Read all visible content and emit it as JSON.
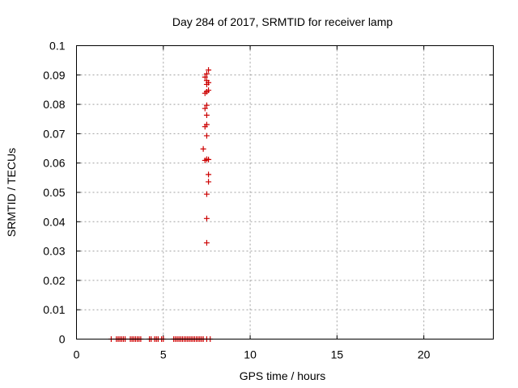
{
  "chart_data": {
    "type": "scatter",
    "title": "Day 284 of 2017, SRMTID for receiver lamp",
    "xlabel": "GPS time / hours",
    "ylabel": "SRMTID / TECUs",
    "xlim": [
      0,
      24
    ],
    "ylim": [
      0,
      0.1
    ],
    "xticks": [
      0,
      5,
      10,
      15,
      20
    ],
    "xtick_labels": [
      "0",
      "5",
      "10",
      "15",
      "20"
    ],
    "yticks": [
      0,
      0.01,
      0.02,
      0.03,
      0.04,
      0.05,
      0.06,
      0.07,
      0.08,
      0.09,
      0.1
    ],
    "ytick_labels": [
      "0",
      "0.01",
      "0.02",
      "0.03",
      "0.04",
      "0.05",
      "0.06",
      "0.07",
      "0.08",
      "0.09",
      "0.1"
    ],
    "grid": true,
    "legend": "none",
    "series": [
      {
        "name": "SRMTID",
        "color": "#cc0000",
        "marker": "plus",
        "points": [
          [
            2.0,
            0
          ],
          [
            2.3,
            0
          ],
          [
            2.4,
            0
          ],
          [
            2.5,
            0
          ],
          [
            2.6,
            0
          ],
          [
            2.7,
            0
          ],
          [
            2.8,
            0
          ],
          [
            3.1,
            0
          ],
          [
            3.2,
            0
          ],
          [
            3.3,
            0
          ],
          [
            3.4,
            0
          ],
          [
            3.5,
            0
          ],
          [
            3.6,
            0
          ],
          [
            3.7,
            0
          ],
          [
            4.2,
            0
          ],
          [
            4.3,
            0
          ],
          [
            4.5,
            0
          ],
          [
            4.6,
            0
          ],
          [
            4.7,
            0
          ],
          [
            4.9,
            0
          ],
          [
            5.0,
            0
          ],
          [
            5.6,
            0
          ],
          [
            5.7,
            0
          ],
          [
            5.8,
            0
          ],
          [
            5.9,
            0
          ],
          [
            6.0,
            0
          ],
          [
            6.1,
            0
          ],
          [
            6.2,
            0
          ],
          [
            6.3,
            0
          ],
          [
            6.4,
            0
          ],
          [
            6.5,
            0
          ],
          [
            6.6,
            0
          ],
          [
            6.7,
            0
          ],
          [
            6.8,
            0
          ],
          [
            6.9,
            0
          ],
          [
            7.0,
            0
          ],
          [
            7.1,
            0
          ],
          [
            7.2,
            0
          ],
          [
            7.3,
            0
          ],
          [
            7.5,
            0
          ],
          [
            7.7,
            0
          ],
          [
            7.5,
            0.0328
          ],
          [
            7.5,
            0.0411
          ],
          [
            7.5,
            0.0494
          ],
          [
            7.6,
            0.0536
          ],
          [
            7.6,
            0.0561
          ],
          [
            7.4,
            0.0609
          ],
          [
            7.6,
            0.0612
          ],
          [
            7.5,
            0.0613
          ],
          [
            7.3,
            0.0648
          ],
          [
            7.5,
            0.0693
          ],
          [
            7.4,
            0.0724
          ],
          [
            7.5,
            0.0731
          ],
          [
            7.5,
            0.0763
          ],
          [
            7.4,
            0.0786
          ],
          [
            7.5,
            0.0797
          ],
          [
            7.4,
            0.0838
          ],
          [
            7.5,
            0.0843
          ],
          [
            7.6,
            0.0848
          ],
          [
            7.5,
            0.0868
          ],
          [
            7.6,
            0.0874
          ],
          [
            7.5,
            0.0881
          ],
          [
            7.4,
            0.0893
          ],
          [
            7.5,
            0.0904
          ],
          [
            7.6,
            0.0917
          ]
        ]
      }
    ]
  }
}
